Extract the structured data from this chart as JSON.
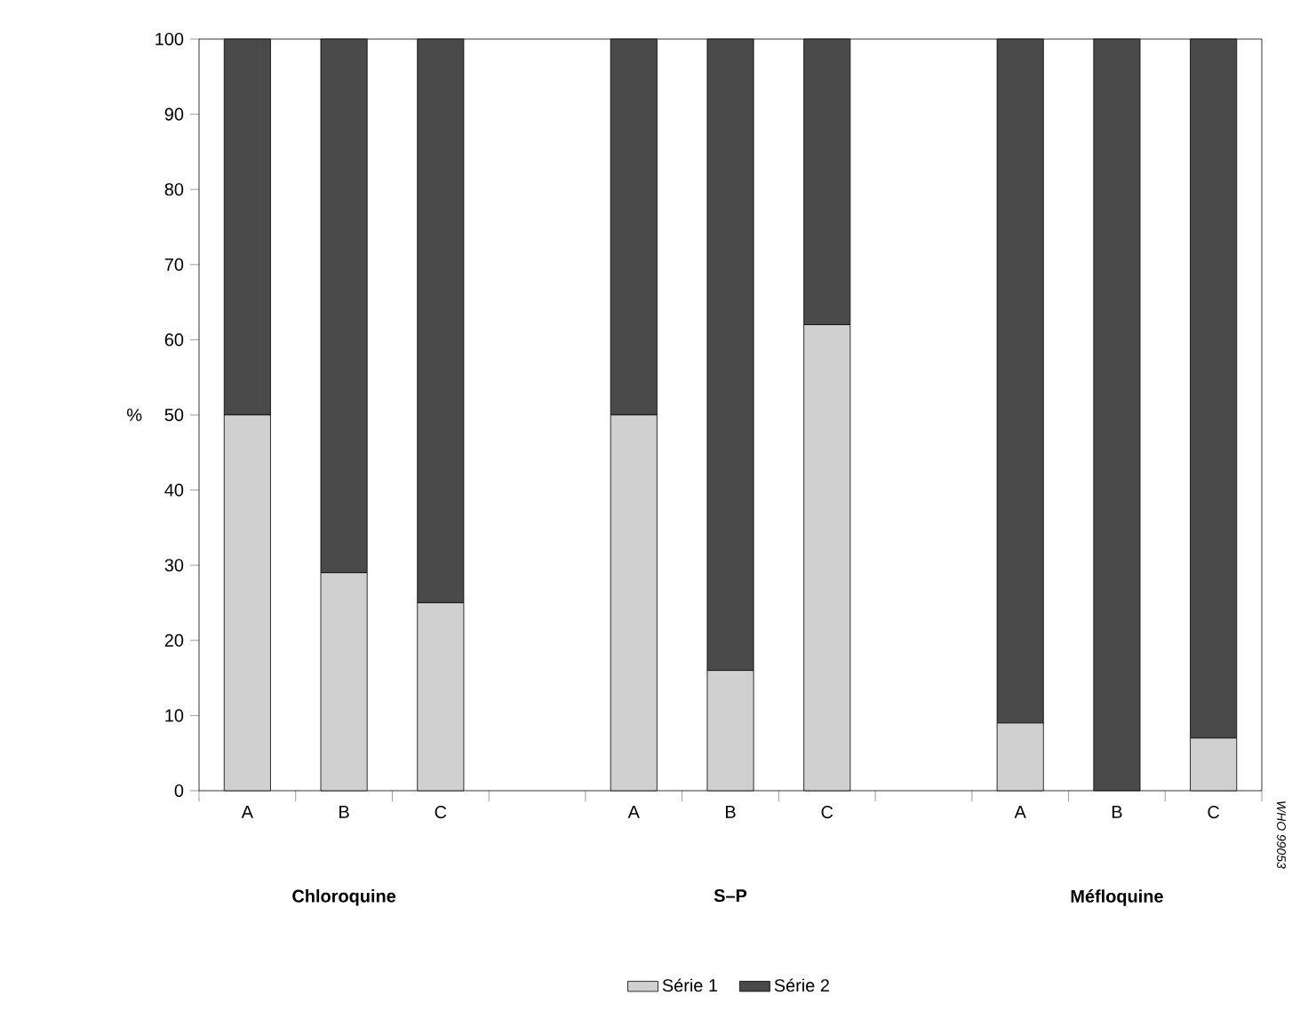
{
  "chart_data": {
    "type": "bar",
    "stacked": true,
    "ylabel": "%",
    "categories": [
      "A",
      "B",
      "C",
      null,
      "A",
      "B",
      "C",
      null,
      "A",
      "B",
      "C"
    ],
    "series": [
      {
        "name": "Série 1",
        "color": "#d0d0d0",
        "values": [
          50,
          29,
          25,
          null,
          50,
          16,
          62,
          null,
          9,
          0,
          7
        ]
      },
      {
        "name": "Série 2",
        "color": "#4a4a4a",
        "values": [
          50,
          71,
          75,
          null,
          50,
          84,
          38,
          null,
          91,
          100,
          93
        ]
      }
    ],
    "ylim": [
      0,
      100
    ],
    "yticks": [
      0,
      10,
      20,
      30,
      40,
      50,
      60,
      70,
      80,
      90,
      100
    ],
    "annotations": [
      "Chloroquine",
      "S–P",
      "Méfloquine",
      "WHO 99053"
    ],
    "legend": "bottom",
    "grid": false
  }
}
